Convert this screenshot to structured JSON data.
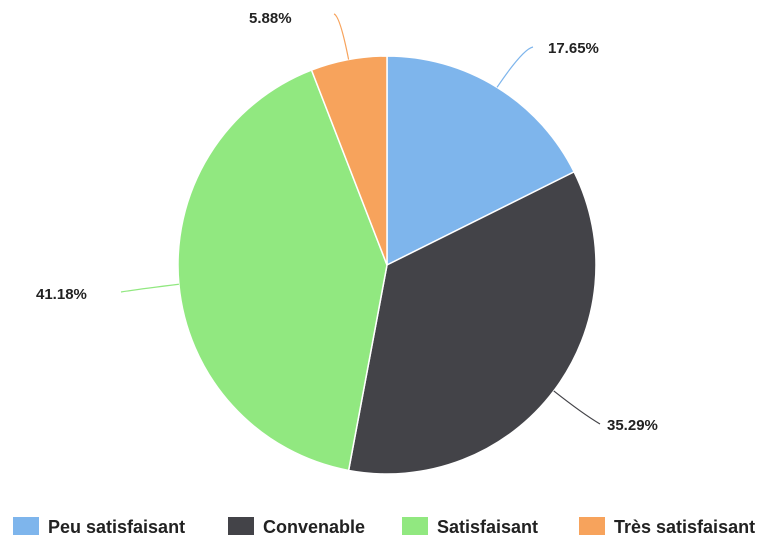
{
  "chart_data": {
    "type": "pie",
    "categories": [
      "Peu satisfaisant",
      "Convenable",
      "Satisfaisant",
      "Très satisfaisant"
    ],
    "values": [
      17.65,
      35.29,
      41.18,
      5.88
    ],
    "labels": [
      "17.65%",
      "35.29%",
      "41.18%",
      "5.88%"
    ],
    "colors": [
      "#7eb5ec",
      "#434348",
      "#91e880",
      "#f7a35c"
    ],
    "title": "",
    "legend_position": "bottom"
  }
}
